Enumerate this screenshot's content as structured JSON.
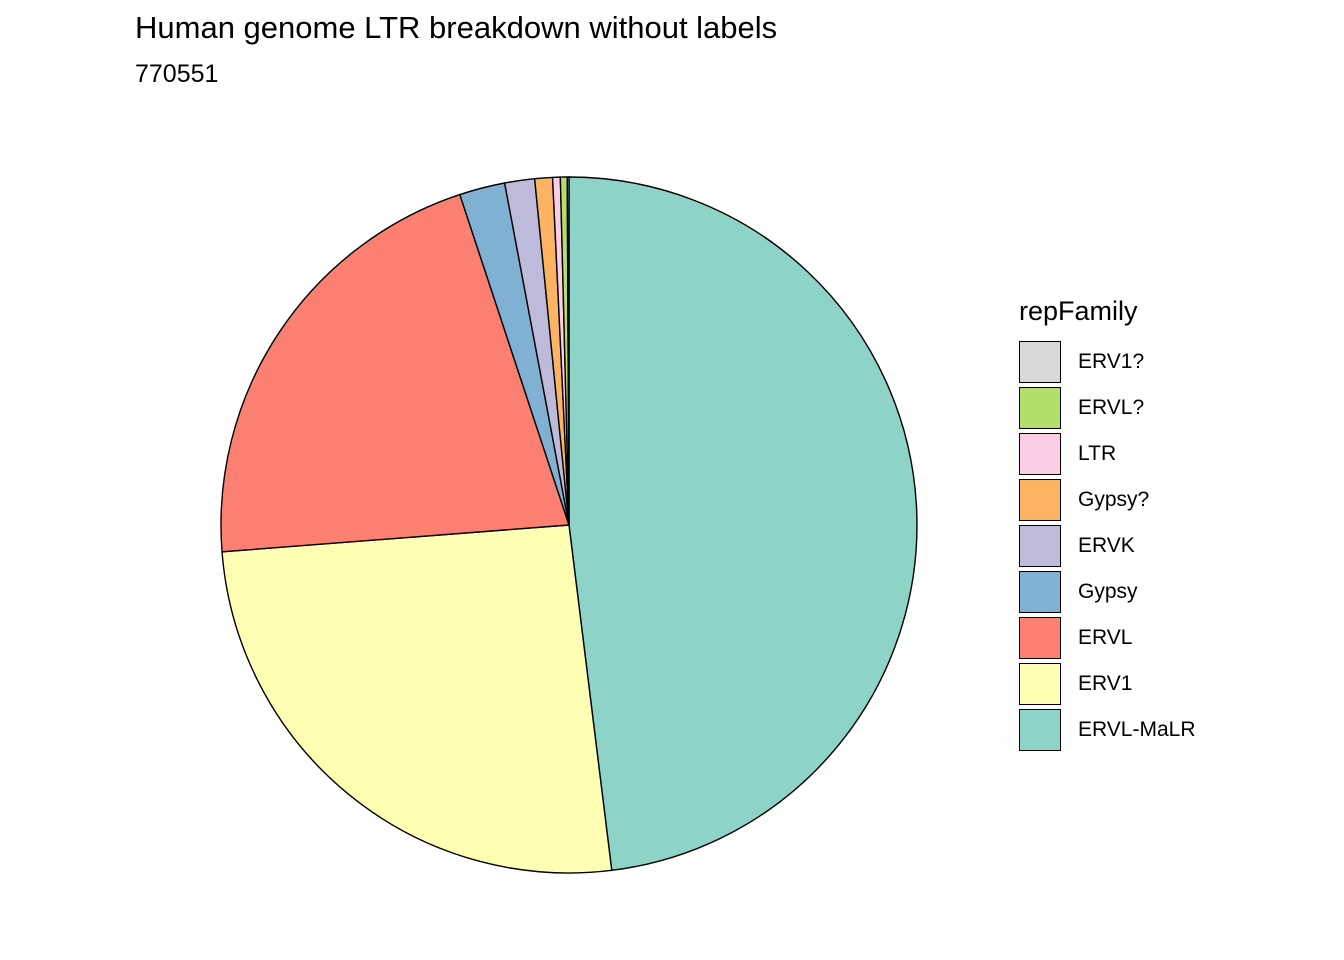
{
  "chart_data": {
    "type": "pie",
    "title": "Human genome LTR breakdown without labels",
    "subtitle": "770551",
    "legend": {
      "title": "repFamily",
      "position": "right"
    },
    "slices": [
      {
        "label": "ERVL-MaLR",
        "value": 0.4852,
        "color": "#8DD3C7"
      },
      {
        "label": "ERV1",
        "value": 0.2599,
        "color": "#FFFFB3"
      },
      {
        "label": "ERVL",
        "value": 0.2136,
        "color": "#FB8072"
      },
      {
        "label": "Gypsy",
        "value": 0.0214,
        "color": "#80B1D3"
      },
      {
        "label": "ERVK",
        "value": 0.014,
        "color": "#BEBADA"
      },
      {
        "label": "Gypsy?",
        "value": 0.0083,
        "color": "#FDB462"
      },
      {
        "label": "LTR",
        "value": 0.0036,
        "color": "#FCCDE5"
      },
      {
        "label": "ERVL?",
        "value": 0.0032,
        "color": "#B3DE69"
      },
      {
        "label": "ERV1?",
        "value": 0.0008,
        "color": "#D9D9D9"
      }
    ],
    "legend_order": [
      "ERV1?",
      "ERVL?",
      "LTR",
      "Gypsy?",
      "ERVK",
      "Gypsy",
      "ERVL",
      "ERV1",
      "ERVL-MaLR"
    ]
  }
}
